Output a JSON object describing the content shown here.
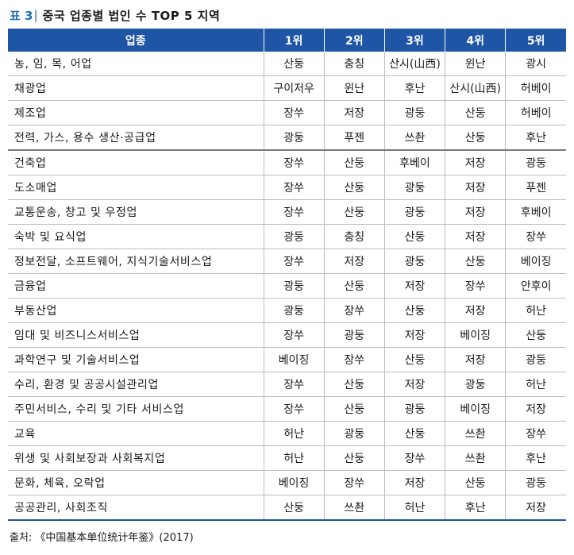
{
  "title": {
    "label": "표 3",
    "sep": "|",
    "text": "중국 업종별 법인 수 TOP 5 지역"
  },
  "table": {
    "headers": [
      "업종",
      "1위",
      "2위",
      "3위",
      "4위",
      "5위"
    ],
    "rows": [
      [
        "농, 임, 목, 어업",
        "산둥",
        "충칭",
        "산시(山西)",
        "윈난",
        "광시"
      ],
      [
        "채광업",
        "구이저우",
        "윈난",
        "후난",
        "산시(山西)",
        "허베이"
      ],
      [
        "제조업",
        "장쑤",
        "저장",
        "광둥",
        "산둥",
        "허베이"
      ],
      [
        "전력, 가스, 용수 생산·공급업",
        "광둥",
        "푸젠",
        "쓰촨",
        "산둥",
        "후난"
      ],
      [
        "건축업",
        "장쑤",
        "산둥",
        "후베이",
        "저장",
        "광둥"
      ],
      [
        "도소매업",
        "장쑤",
        "산둥",
        "광둥",
        "저장",
        "푸젠"
      ],
      [
        "교통운송, 창고 및 우정업",
        "장쑤",
        "산둥",
        "광둥",
        "저장",
        "후베이"
      ],
      [
        "숙박 및 요식업",
        "광둥",
        "충칭",
        "산둥",
        "저장",
        "장쑤"
      ],
      [
        "정보전달, 소프트웨어, 지식기술서비스업",
        "장쑤",
        "저장",
        "광둥",
        "산둥",
        "베이징"
      ],
      [
        "금융업",
        "광둥",
        "산둥",
        "저장",
        "장쑤",
        "안후이"
      ],
      [
        "부동산업",
        "광둥",
        "장쑤",
        "산둥",
        "저장",
        "허난"
      ],
      [
        "임대 및 비즈니스서비스업",
        "장쑤",
        "광둥",
        "저장",
        "베이징",
        "산둥"
      ],
      [
        "과학연구 및 기술서비스업",
        "베이징",
        "장쑤",
        "산둥",
        "저장",
        "광둥"
      ],
      [
        "수리, 환경 및 공공시설관리업",
        "장쑤",
        "산둥",
        "저장",
        "광둥",
        "허난"
      ],
      [
        "주민서비스, 수리 및 기타 서비스업",
        "장쑤",
        "산둥",
        "광둥",
        "베이징",
        "저장"
      ],
      [
        "교육",
        "허난",
        "광둥",
        "산둥",
        "쓰촨",
        "장쑤"
      ],
      [
        "위생 및 사회보장과 사회복지업",
        "허난",
        "산둥",
        "장쑤",
        "쓰촨",
        "후난"
      ],
      [
        "문화, 체육, 오락업",
        "베이징",
        "장쑤",
        "저장",
        "산둥",
        "광둥"
      ],
      [
        "공공관리, 사회조직",
        "산둥",
        "쓰촨",
        "허난",
        "후난",
        "저장"
      ]
    ]
  },
  "source": "출처: 《中国基本单位统计年鉴》(2017)"
}
